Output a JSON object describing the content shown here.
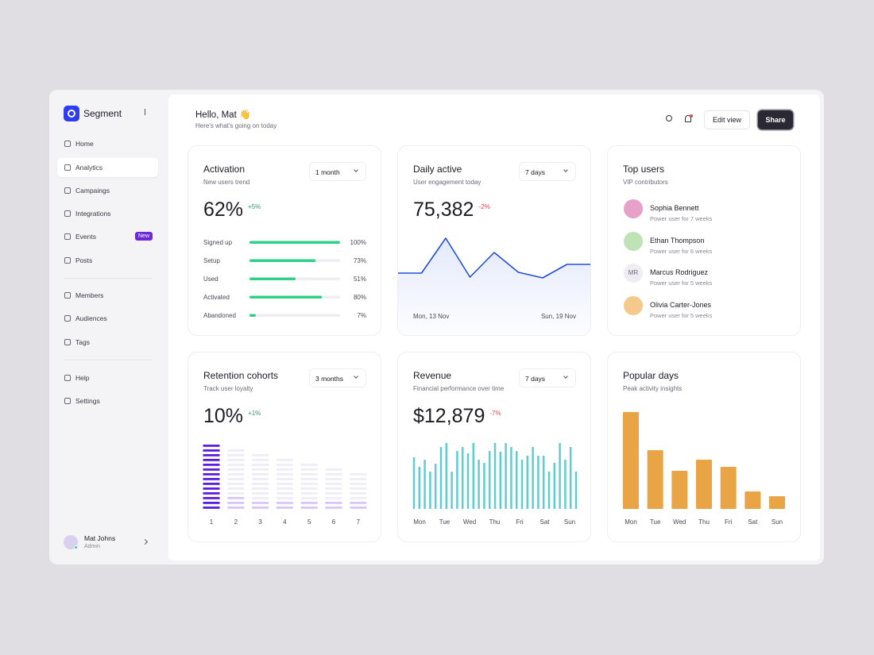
{
  "sidebar": {
    "brand": "Segment",
    "groups": [
      [
        "Home",
        "Analytics",
        "Campaings",
        "Integrations",
        "Events",
        "Posts"
      ],
      [
        "Members",
        "Audiences",
        "Tags"
      ],
      [
        "Help",
        "Settings"
      ]
    ],
    "badge": "New",
    "user": {
      "name": "Mat Johns",
      "role": "Admin"
    }
  },
  "header": {
    "greeting": "Hello, Mat 👋",
    "subtitle": "Here's what's going on today",
    "buttons": [
      "Edit view",
      "Share"
    ]
  },
  "cards": {
    "activation": {
      "title": "Activation",
      "subtitle": "New users trend",
      "period": "1 month",
      "metric": "62%",
      "change": "+5%",
      "chart": {
        "type": "progress",
        "categories": [
          "Signed up",
          "Setup",
          "Used",
          "Activated",
          "Abandoned"
        ],
        "values": [
          100,
          73,
          51,
          80,
          7
        ],
        "value_labels": [
          "100%",
          "73%",
          "51%",
          "80%",
          "7%"
        ],
        "xlim": [
          0,
          100
        ],
        "color": "#2fd08a"
      }
    },
    "daily_active": {
      "title": "Daily active",
      "subtitle": "User engagement today",
      "period": "7 days",
      "metric": "75,382",
      "change": "-2%",
      "chart": {
        "type": "line",
        "values": [
          56,
          56,
          100,
          51,
          82,
          57,
          50,
          67,
          67
        ],
        "axis_labels": [
          "Mon, 13 Nov",
          "Sun, 19 Nov"
        ],
        "ylim": [
          0,
          100
        ],
        "color": "#1f4fe0"
      }
    },
    "top_users": {
      "title": "Top users",
      "subtitle": "VIP contributors",
      "users": [
        {
          "name": "Sophia Bennett",
          "note": "Power user for 7 weeks"
        },
        {
          "name": "Ethan Thompson",
          "note": "Power user for 6 weeks"
        },
        {
          "name": "Marcus Rodriguez",
          "initials": "MR",
          "note": "Power user for 5 weeks"
        },
        {
          "name": "Olivia Carter-Jones",
          "note": "Power user for 5 weeks"
        }
      ]
    },
    "retention": {
      "title": "Retention cohorts",
      "subtitle": "Track user loyalty",
      "period": "3 months",
      "metric": "10%",
      "change": "+1%",
      "chart": {
        "type": "cohort",
        "categories": [
          "1",
          "2",
          "3",
          "4",
          "5",
          "6",
          "7"
        ],
        "values": [
          14,
          13,
          12,
          11,
          10,
          9,
          8
        ],
        "active": [
          14,
          3,
          2,
          2,
          2,
          2,
          2
        ],
        "color": "#5b1ee0"
      }
    },
    "revenue": {
      "title": "Revenue",
      "subtitle": "Financial performance over time",
      "period": "7 days",
      "metric": "$12,879",
      "change": "-7%",
      "chart": {
        "type": "bar",
        "values": [
          65,
          53,
          62,
          47,
          57,
          78,
          83,
          47,
          73,
          78,
          70,
          83,
          62,
          58,
          73,
          83,
          72,
          83,
          78,
          73,
          62,
          67,
          78,
          67,
          67,
          47,
          58,
          83,
          62,
          78,
          47
        ],
        "axis_labels": [
          "Mon",
          "Tue",
          "Wed",
          "Thu",
          "Fri",
          "Sat",
          "Sun"
        ],
        "ylim": [
          0,
          100
        ],
        "color": "#5ccdd0"
      }
    },
    "popular_days": {
      "title": "Popular days",
      "subtitle": "Peak activity insights",
      "chart": {
        "type": "bar",
        "categories": [
          "Mon",
          "Tue",
          "Wed",
          "Thu",
          "Fri",
          "Sat",
          "Sun"
        ],
        "values": [
          122,
          74,
          48,
          62,
          53,
          22,
          16
        ],
        "ylim": [
          0,
          125
        ],
        "color": "#e8a445"
      }
    }
  }
}
